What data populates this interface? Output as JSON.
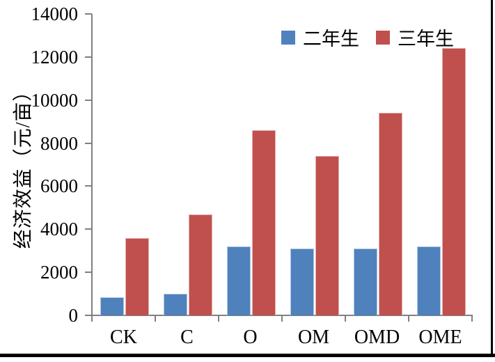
{
  "figure": {
    "background_color": "#ffffff",
    "frame_color": "#000000",
    "axis_color": "#808080",
    "text_color": "#000000"
  },
  "chart_data": {
    "type": "bar",
    "title": "",
    "xlabel": "",
    "ylabel": "经济效益（元/亩）",
    "categories": [
      "CK",
      "C",
      "O",
      "OM",
      "OMD",
      "OME"
    ],
    "series": [
      {
        "name": "二年生",
        "color": "#4F81BD",
        "values": [
          850,
          1000,
          3200,
          3100,
          3100,
          3200
        ]
      },
      {
        "name": "三年生",
        "color": "#C0504D",
        "values": [
          3600,
          4700,
          8600,
          7400,
          9400,
          12400
        ]
      }
    ],
    "ylim": [
      0,
      14000
    ],
    "ytick_step": 2000,
    "yticks": [
      0,
      2000,
      4000,
      6000,
      8000,
      10000,
      12000,
      14000
    ],
    "grid": false,
    "legend_position": "top-right-inside"
  }
}
